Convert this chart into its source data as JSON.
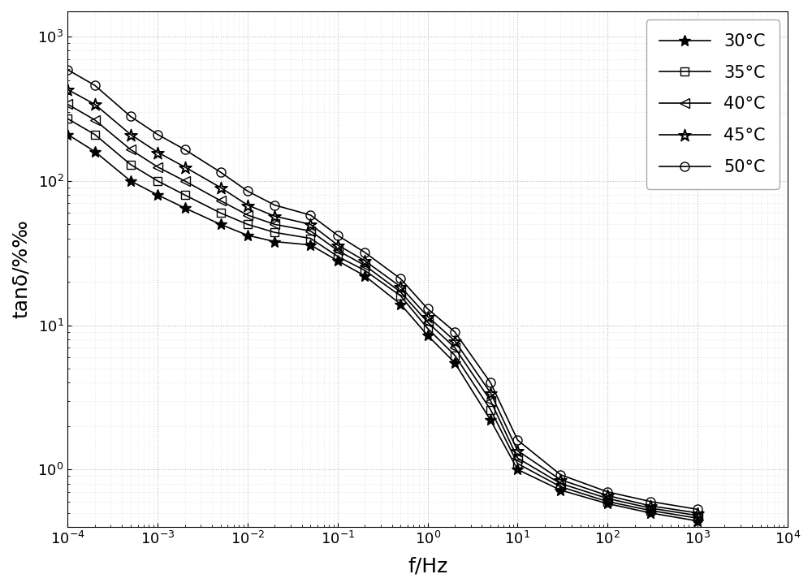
{
  "title": "",
  "xlabel": "f/Hz",
  "ylabel": "tanδ/%‰",
  "xlim_log": [
    -4,
    4
  ],
  "ylim": [
    0.4,
    1500
  ],
  "series": [
    {
      "label": "30°C",
      "marker": "*",
      "markersize": 10,
      "freq": [
        0.0001,
        0.0002,
        0.0005,
        0.001,
        0.002,
        0.005,
        0.01,
        0.02,
        0.05,
        0.1,
        0.2,
        0.5,
        1.0,
        2.0,
        5.0,
        10.0,
        30.0,
        100.0,
        300.0,
        1000.0
      ],
      "tand": [
        210,
        160,
        100,
        80,
        65,
        50,
        42,
        38,
        36,
        28,
        22,
        14,
        8.5,
        5.5,
        2.2,
        1.0,
        0.72,
        0.58,
        0.5,
        0.44
      ]
    },
    {
      "label": "35°C",
      "marker": "s",
      "markersize": 7,
      "freq": [
        0.0001,
        0.0002,
        0.0005,
        0.001,
        0.002,
        0.005,
        0.01,
        0.02,
        0.05,
        0.1,
        0.2,
        0.5,
        1.0,
        2.0,
        5.0,
        10.0,
        30.0,
        100.0,
        300.0,
        1000.0
      ],
      "tand": [
        270,
        210,
        130,
        100,
        80,
        60,
        50,
        44,
        40,
        30,
        24,
        16,
        9.5,
        6.2,
        2.6,
        1.1,
        0.76,
        0.6,
        0.52,
        0.46
      ]
    },
    {
      "label": "40°C",
      "marker": "<",
      "markersize": 8,
      "freq": [
        0.0001,
        0.0002,
        0.0005,
        0.001,
        0.002,
        0.005,
        0.01,
        0.02,
        0.05,
        0.1,
        0.2,
        0.5,
        1.0,
        2.0,
        5.0,
        10.0,
        30.0,
        100.0,
        300.0,
        1000.0
      ],
      "tand": [
        340,
        265,
        165,
        125,
        100,
        73,
        58,
        50,
        45,
        33,
        26,
        17,
        10.5,
        7.0,
        3.0,
        1.2,
        0.8,
        0.63,
        0.54,
        0.48
      ]
    },
    {
      "label": "45°C",
      "marker": "$\\u2606$",
      "markersize": 10,
      "freq": [
        0.0001,
        0.0002,
        0.0005,
        0.001,
        0.002,
        0.005,
        0.01,
        0.02,
        0.05,
        0.1,
        0.2,
        0.5,
        1.0,
        2.0,
        5.0,
        10.0,
        30.0,
        100.0,
        300.0,
        1000.0
      ],
      "tand": [
        430,
        340,
        210,
        158,
        125,
        90,
        68,
        57,
        50,
        36,
        28,
        18.5,
        11.5,
        7.8,
        3.4,
        1.35,
        0.85,
        0.66,
        0.56,
        0.5
      ]
    },
    {
      "label": "50°C",
      "marker": "o",
      "markersize": 8,
      "freq": [
        0.0001,
        0.0002,
        0.0005,
        0.001,
        0.002,
        0.005,
        0.01,
        0.02,
        0.05,
        0.1,
        0.2,
        0.5,
        1.0,
        2.0,
        5.0,
        10.0,
        30.0,
        100.0,
        300.0,
        1000.0
      ],
      "tand": [
        590,
        460,
        280,
        210,
        165,
        115,
        85,
        68,
        58,
        42,
        32,
        21,
        13.0,
        9.0,
        4.0,
        1.6,
        0.92,
        0.7,
        0.6,
        0.53
      ]
    }
  ],
  "background_color": "#ffffff",
  "grid_color": "#bbbbbb",
  "line_color": "#000000",
  "tick_labelsize": 13,
  "axis_labelsize": 18,
  "legend_fontsize": 15
}
